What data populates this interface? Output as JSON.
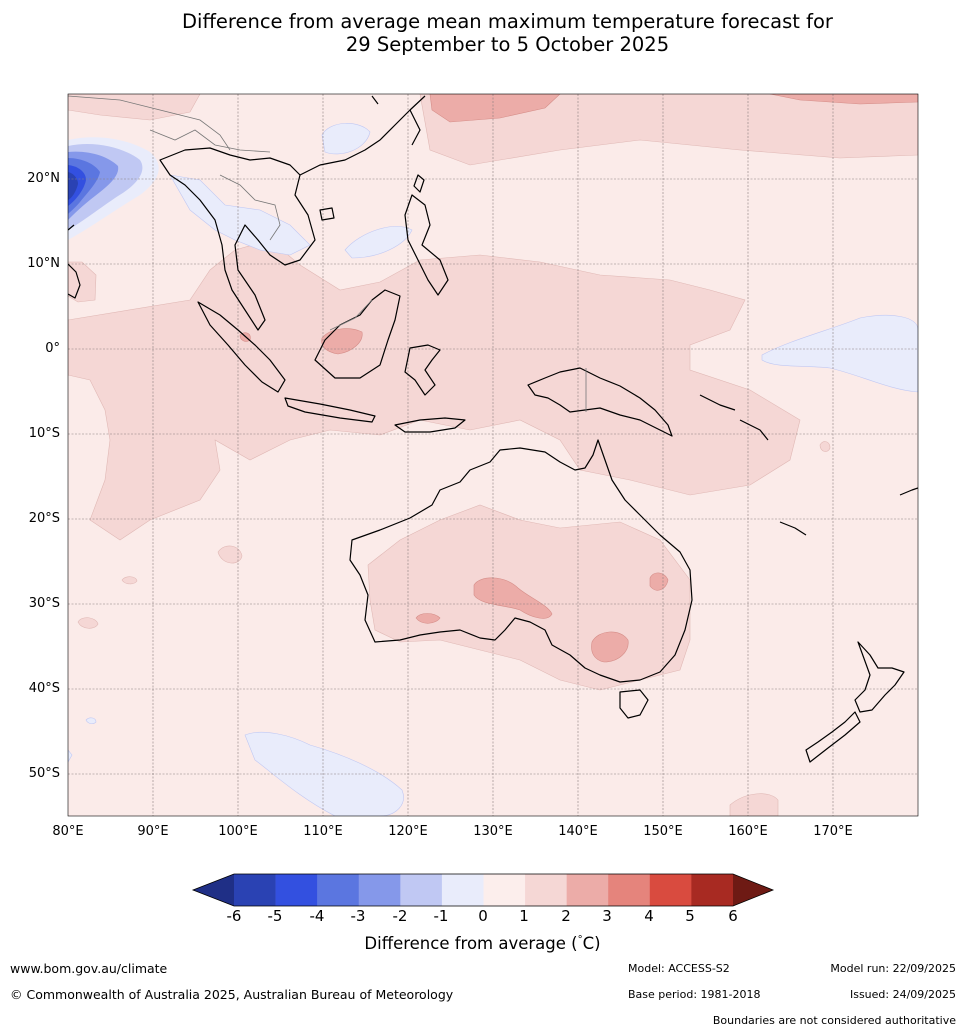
{
  "title_line1": "Difference from average mean maximum temperature forecast for",
  "title_line2": "29 September to 5 October 2025",
  "lat_labels": [
    "20°N",
    "10°N",
    "0°",
    "10°S",
    "20°S",
    "30°S",
    "40°S",
    "50°S"
  ],
  "lon_labels": [
    "80°E",
    "90°E",
    "100°E",
    "110°E",
    "120°E",
    "130°E",
    "140°E",
    "150°E",
    "160°E",
    "170°E"
  ],
  "colorbar": {
    "ticks": [
      "-6",
      "-5",
      "-4",
      "-3",
      "-2",
      "-1",
      "0",
      "1",
      "2",
      "3",
      "4",
      "5",
      "6"
    ],
    "colors": [
      "#1f2f86",
      "#2a42b3",
      "#3350e0",
      "#5b76e0",
      "#8598ea",
      "#c0c8f3",
      "#e9ecfb",
      "#fceeec",
      "#f5d7d5",
      "#ecaca8",
      "#e5847c",
      "#d94b3f",
      "#a82a22",
      "#6e1a14"
    ],
    "label": "Difference from average (",
    "label_deg": "°",
    "label_unit": "C)"
  },
  "footer": {
    "website": "www.bom.gov.au/climate",
    "copyright": "© Commonwealth of Australia 2025, Australian Bureau of Meteorology",
    "model": "Model: ACCESS-S2",
    "base_period": "Base period: 1981-2018",
    "model_run": "Model run: 22/09/2025",
    "issued": "Issued: 24/09/2025",
    "disclaimer": "Boundaries are not considered authoritative"
  }
}
